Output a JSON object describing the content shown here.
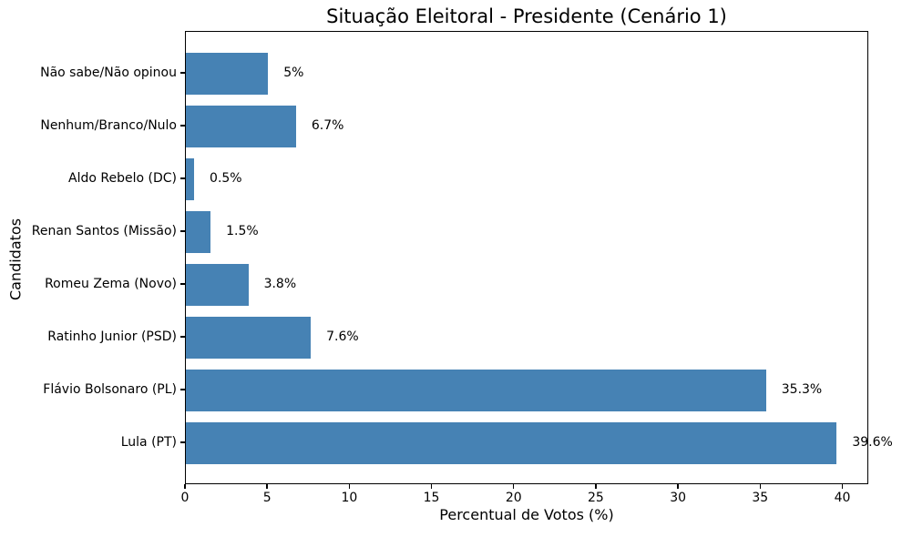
{
  "chart_data": {
    "type": "bar",
    "orientation": "horizontal",
    "title": "Situação Eleitoral - Presidente (Cenário 1)",
    "xlabel": "Percentual de Votos (%)",
    "ylabel": "Candidatos",
    "category_order": "top-to-bottom",
    "categories": [
      "Não sabe/Não opinou",
      "Nenhum/Branco/Nulo",
      "Aldo Rebelo (DC)",
      "Renan Santos (Missão)",
      "Romeu Zema (Novo)",
      "Ratinho Junior (PSD)",
      "Flávio Bolsonaro (PL)",
      "Lula (PT)"
    ],
    "values": [
      5,
      6.7,
      0.5,
      1.5,
      3.8,
      7.6,
      35.3,
      39.6
    ],
    "value_labels": [
      "5%",
      "6.7%",
      "0.5%",
      "1.5%",
      "3.8%",
      "7.6%",
      "35.3%",
      "39.6%"
    ],
    "xticks": [
      0,
      5,
      10,
      15,
      20,
      25,
      30,
      35,
      40
    ],
    "xtick_labels": [
      "0",
      "5",
      "10",
      "15",
      "20",
      "25",
      "30",
      "35",
      "40"
    ],
    "xlim": [
      0,
      41.58
    ],
    "bar_color": "#4682b4",
    "grid": false,
    "background_color": "#ffffff",
    "text_color": "#000000"
  }
}
